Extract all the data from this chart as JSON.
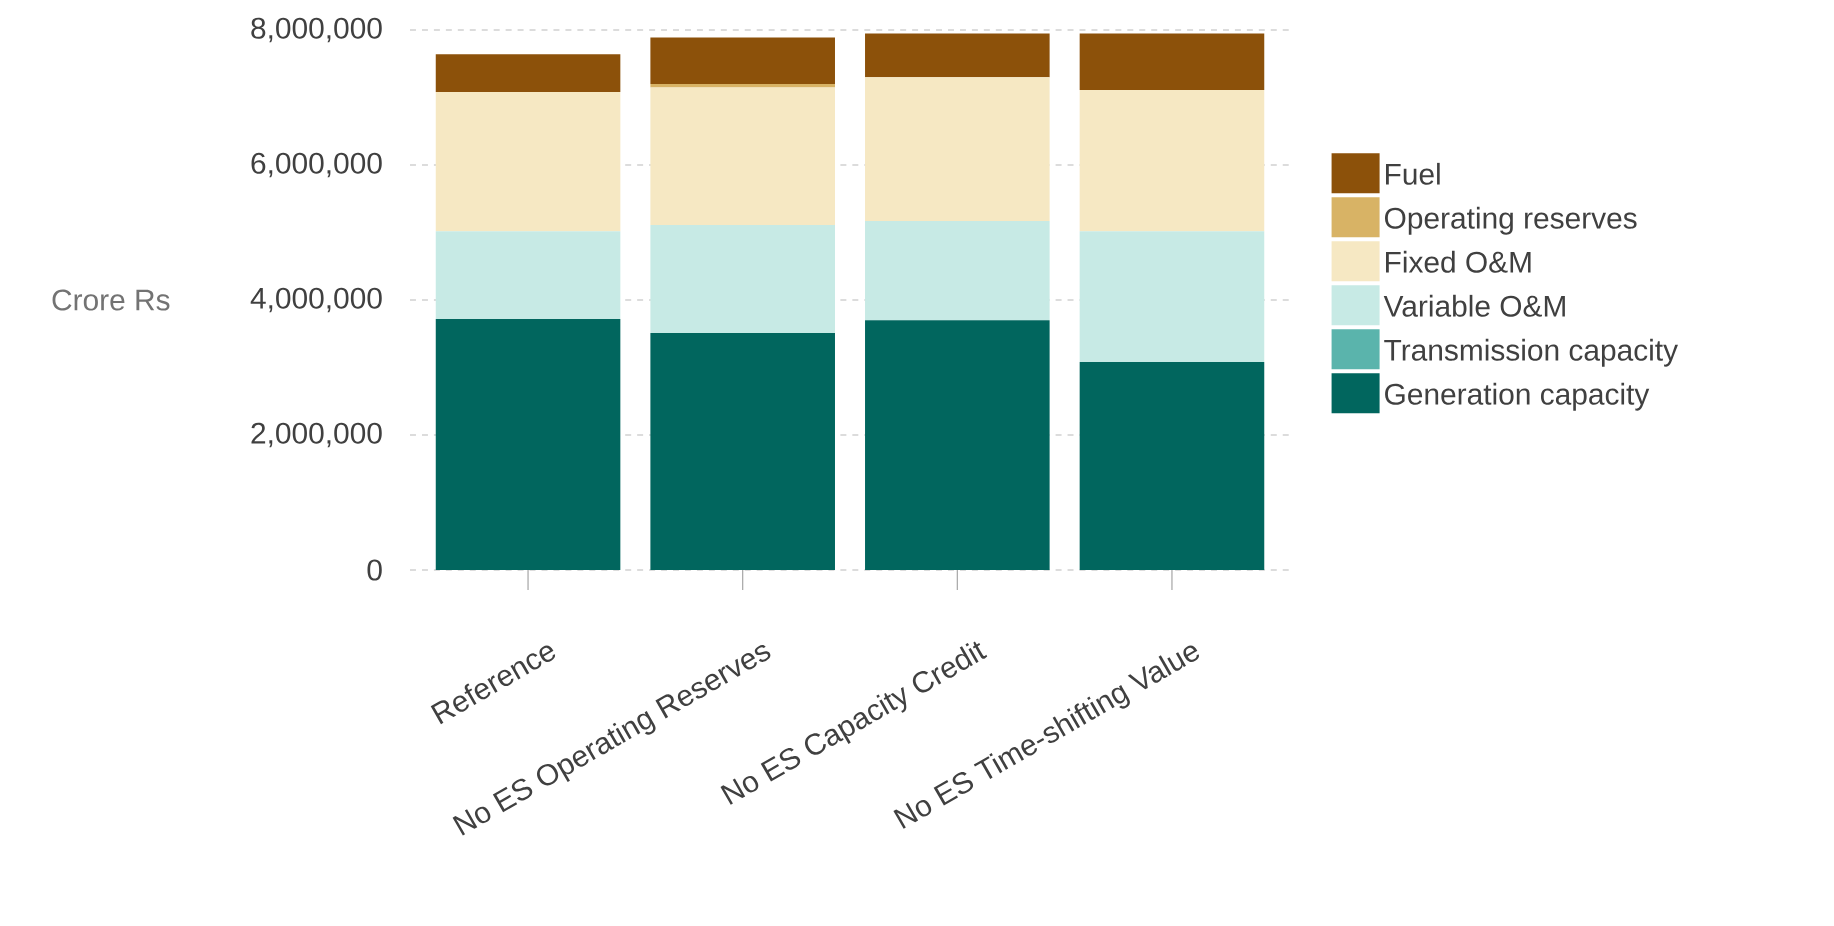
{
  "chart_data": {
    "type": "bar",
    "stacked": true,
    "ylabel": "Crore Rs",
    "categories": [
      "Reference",
      "No ES Operating Reserves",
      "No ES Capacity Credit",
      "No ES Time-shifting Value"
    ],
    "series": [
      {
        "name": "Generation capacity",
        "color": "#01665e",
        "values": [
          3720000,
          3510000,
          3700000,
          3080000
        ]
      },
      {
        "name": "Transmission capacity",
        "color": "#5ab4ac",
        "values": [
          0,
          0,
          0,
          0
        ]
      },
      {
        "name": "Variable O&M",
        "color": "#c7eae5",
        "values": [
          1300000,
          1600000,
          1470000,
          1940000
        ]
      },
      {
        "name": "Fixed O&M",
        "color": "#f6e8c3",
        "values": [
          2060000,
          2040000,
          2130000,
          2090000
        ]
      },
      {
        "name": "Operating reserves",
        "color": "#d8b365",
        "values": [
          0,
          50000,
          0,
          0
        ]
      },
      {
        "name": "Fuel",
        "color": "#8c510a",
        "values": [
          560000,
          690000,
          650000,
          840000
        ]
      }
    ],
    "ylim": [
      0,
      8000000
    ],
    "yticks": [
      {
        "value": 0,
        "label": "0"
      },
      {
        "value": 2000000,
        "label": "2,000,000"
      },
      {
        "value": 4000000,
        "label": "4,000,000"
      },
      {
        "value": 6000000,
        "label": "6,000,000"
      },
      {
        "value": 8000000,
        "label": "8,000,000"
      }
    ],
    "grid": "y",
    "legend": "right"
  }
}
